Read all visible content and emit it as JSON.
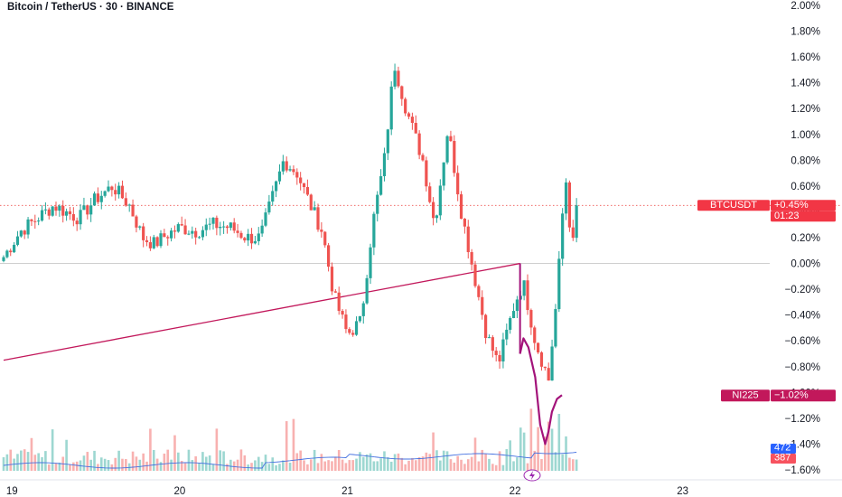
{
  "title": "Bitcoin / TetherUS · 30 · BINANCE",
  "colors": {
    "up": "#26a69a",
    "down": "#ef5350",
    "trend_line": "#c2185b",
    "ni225_line": "#a3137a",
    "volume_ma": "#4470e0",
    "price_guide": "#ef5350",
    "btc_tag": "#f23645",
    "ni225_tag": "#c2185b",
    "vol_up_tag": "#2962ff",
    "vol_down_tag": "#f7525f"
  },
  "chart_data": {
    "type": "candlestick",
    "y_axis": {
      "unit": "%",
      "min": -1.6,
      "max": 2.0,
      "tick_labels": [
        "2.00%",
        "1.80%",
        "1.60%",
        "1.40%",
        "1.20%",
        "1.00%",
        "0.80%",
        "0.60%",
        "0.40%",
        "0.20%",
        "0.00%",
        "−0.20%",
        "−0.40%",
        "−0.60%",
        "−0.80%",
        "−1.00%",
        "−1.20%",
        "−1.40%",
        "−1.60%"
      ],
      "tick_values": [
        2.0,
        1.8,
        1.6,
        1.4,
        1.2,
        1.0,
        0.8,
        0.6,
        0.4,
        0.2,
        0.0,
        -0.2,
        -0.4,
        -0.6,
        -0.8,
        -1.0,
        -1.2,
        -1.4,
        -1.6
      ]
    },
    "x_axis": {
      "tick_labels": [
        "19",
        "20",
        "21",
        "22",
        "23"
      ],
      "tick_values": [
        19,
        20,
        21,
        22,
        23
      ],
      "min": 18.95,
      "max": 23.95
    },
    "btc_anchors": [
      [
        18.95,
        0.05
      ],
      [
        19.05,
        0.25
      ],
      [
        19.15,
        0.35
      ],
      [
        19.25,
        0.45
      ],
      [
        19.32,
        0.4
      ],
      [
        19.4,
        0.35
      ],
      [
        19.5,
        0.5
      ],
      [
        19.6,
        0.6
      ],
      [
        19.7,
        0.45
      ],
      [
        19.78,
        0.2
      ],
      [
        19.85,
        0.15
      ],
      [
        19.92,
        0.22
      ],
      [
        20.0,
        0.28
      ],
      [
        20.1,
        0.25
      ],
      [
        20.2,
        0.3
      ],
      [
        20.3,
        0.28
      ],
      [
        20.4,
        0.2
      ],
      [
        20.48,
        0.2
      ],
      [
        20.55,
        0.5
      ],
      [
        20.62,
        0.8
      ],
      [
        20.7,
        0.7
      ],
      [
        20.78,
        0.45
      ],
      [
        20.85,
        0.25
      ],
      [
        20.92,
        -0.25
      ],
      [
        21.0,
        -0.55
      ],
      [
        21.08,
        -0.45
      ],
      [
        21.15,
        0.3
      ],
      [
        21.22,
        0.8
      ],
      [
        21.28,
        1.55
      ],
      [
        21.35,
        1.2
      ],
      [
        21.45,
        0.8
      ],
      [
        21.52,
        0.3
      ],
      [
        21.6,
        1.05
      ],
      [
        21.68,
        0.4
      ],
      [
        21.75,
        -0.05
      ],
      [
        21.83,
        -0.55
      ],
      [
        21.9,
        -0.78
      ],
      [
        22.0,
        -0.3
      ],
      [
        22.05,
        -0.15
      ],
      [
        22.12,
        -0.6
      ],
      [
        22.2,
        -0.9
      ],
      [
        22.25,
        -0.25
      ],
      [
        22.3,
        0.7
      ],
      [
        22.34,
        0.1
      ],
      [
        22.38,
        0.45
      ]
    ],
    "ni225_series": {
      "name": "NI225",
      "x": [
        22.03,
        22.05,
        22.08,
        22.12,
        22.15,
        22.18,
        22.2,
        22.22,
        22.25,
        22.28
      ],
      "y": [
        -0.7,
        -0.58,
        -0.65,
        -0.88,
        -1.25,
        -1.4,
        -1.3,
        -1.15,
        -1.05,
        -1.02
      ]
    },
    "trend_line": {
      "x": [
        18.95,
        22.03
      ],
      "y": [
        -0.75,
        0.0
      ]
    },
    "current": {
      "price_pct": 0.45,
      "x": 22.38
    },
    "volume": {
      "visible_range": [
        19.0,
        22.4
      ],
      "ma_level": "low"
    }
  },
  "tags": {
    "btc": {
      "symbol": "BTCUSDT",
      "value": "+0.45%",
      "countdown": "01:23"
    },
    "ni225": {
      "symbol": "NI225",
      "value": "−1.02%"
    },
    "vol_up": "472",
    "vol_down": "387"
  },
  "icons": {
    "alert": "lightning-icon"
  }
}
